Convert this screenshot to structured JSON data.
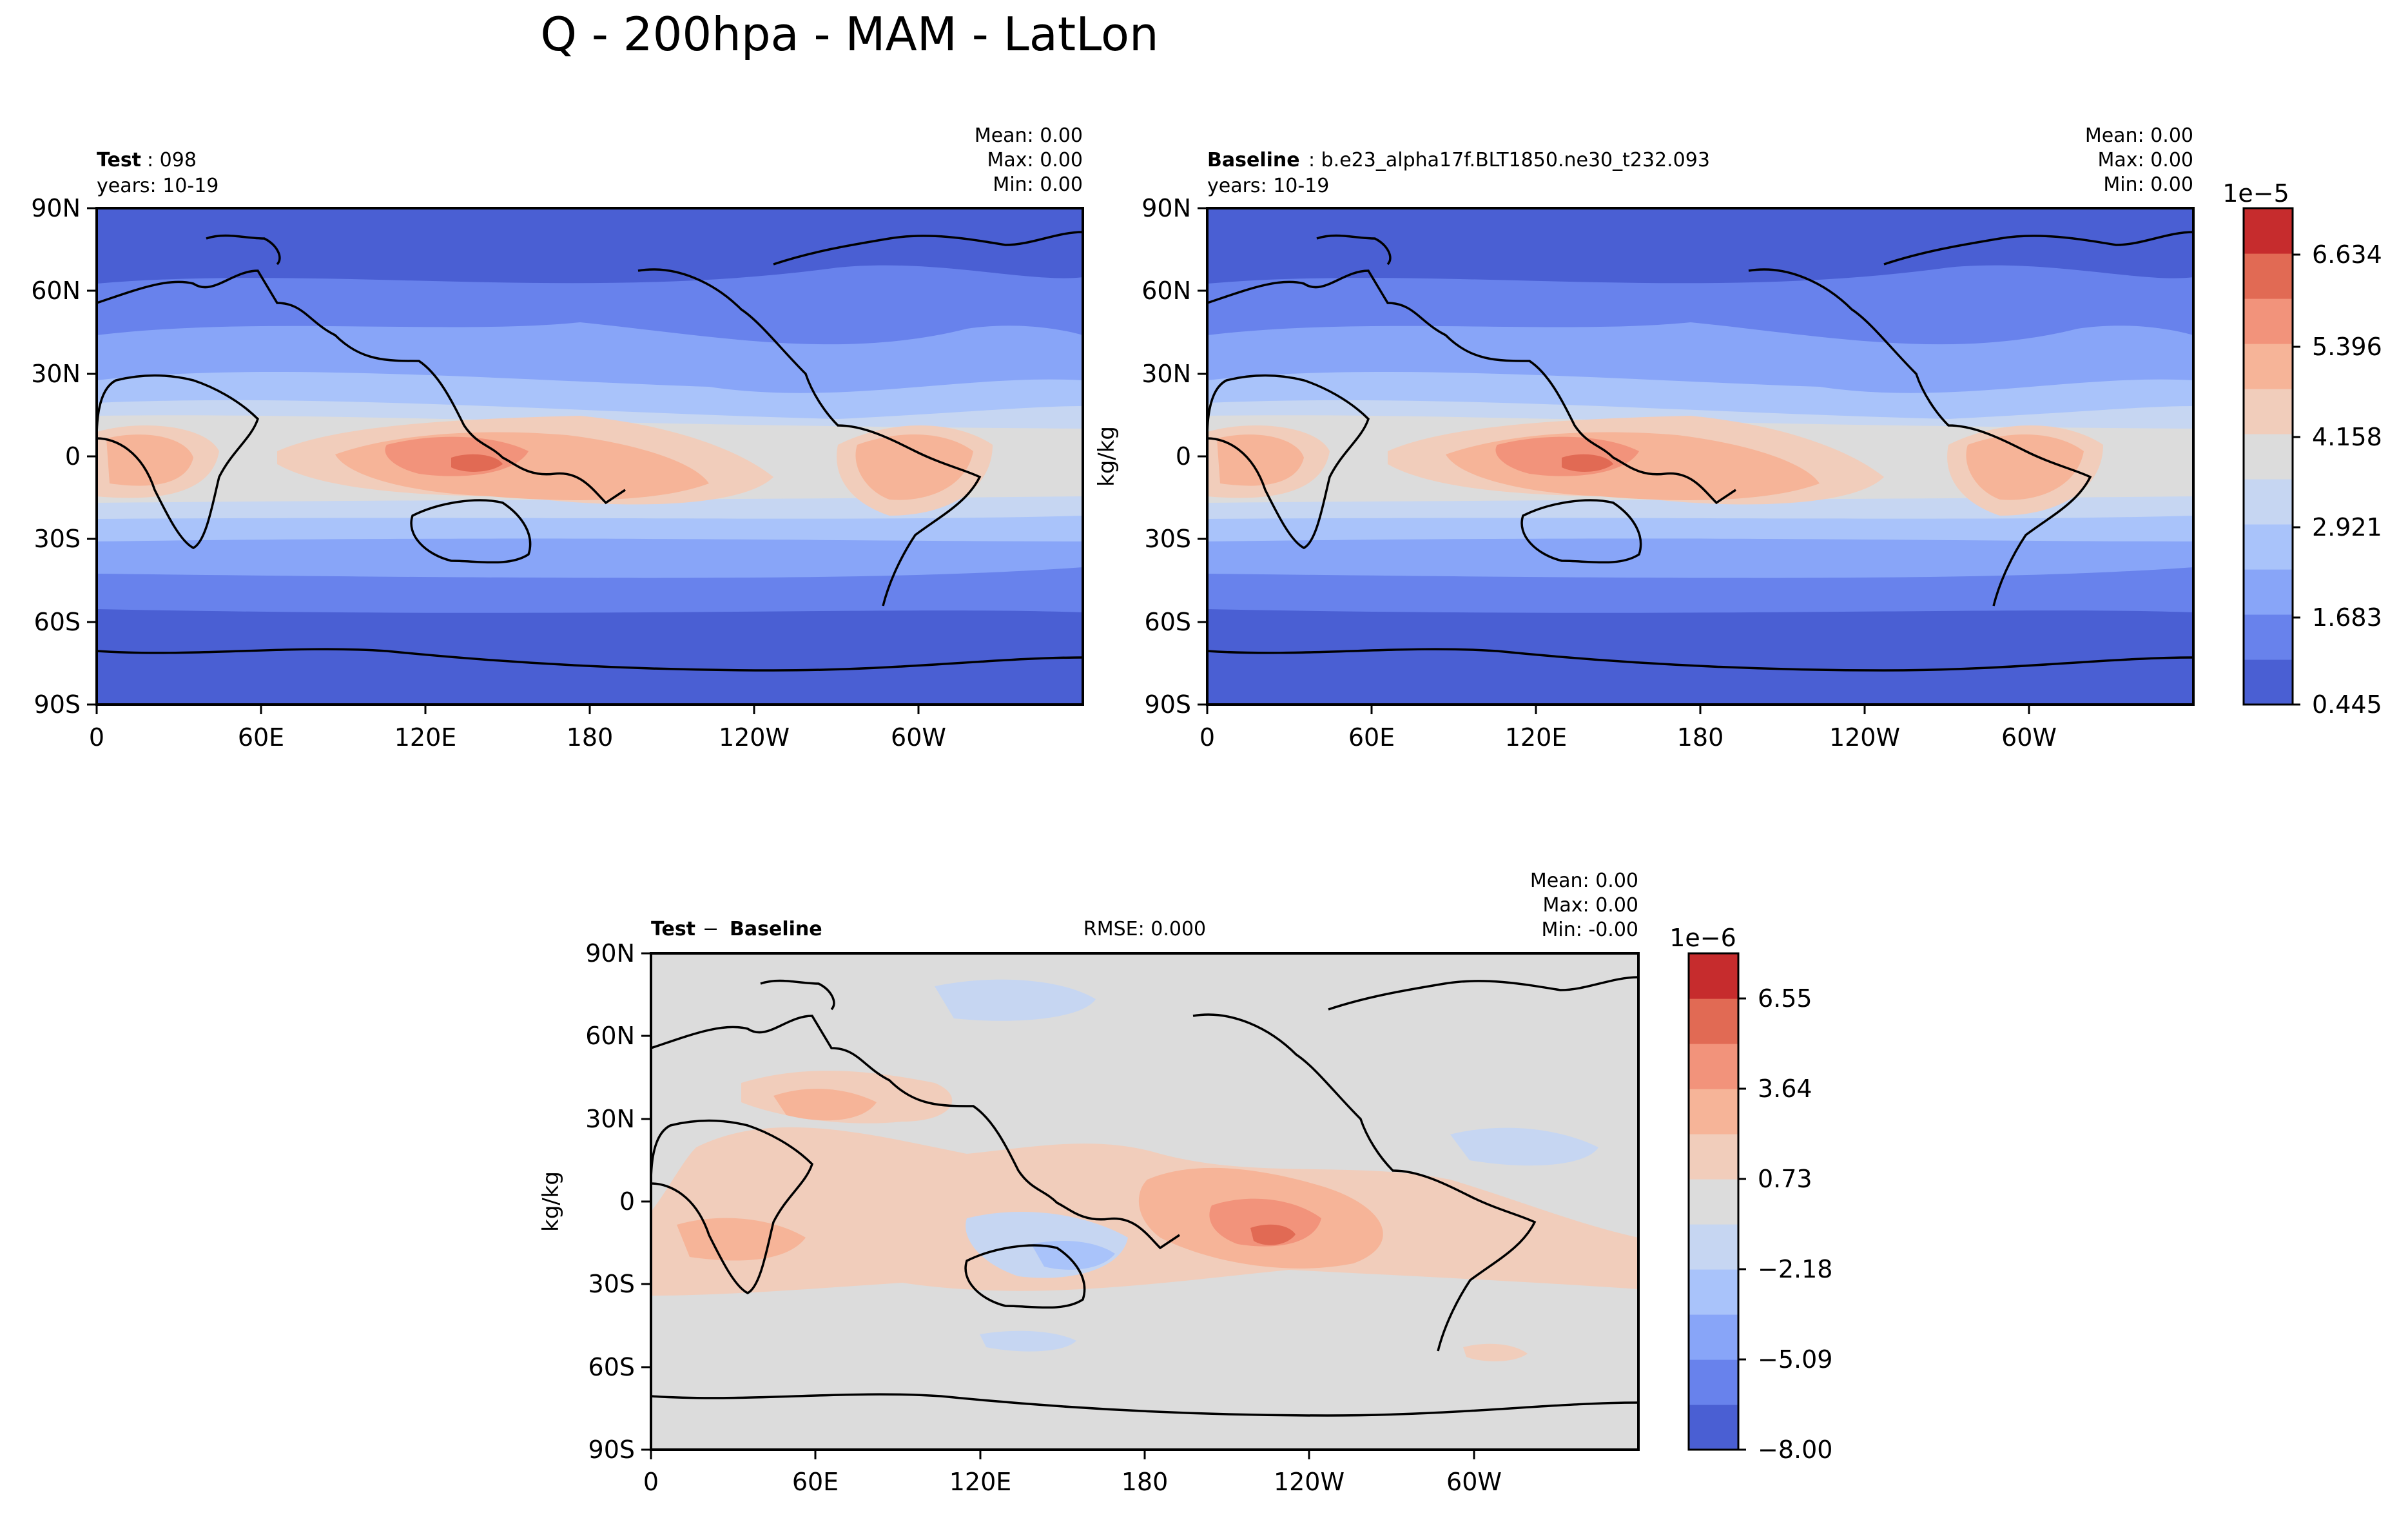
{
  "figure_title": "Q - 200hpa - MAM - LatLon",
  "colors": {
    "cool": [
      "#4a5fd3",
      "#6882ec",
      "#88a5f8",
      "#a9c3fa",
      "#c6d6f2",
      "#dcdcdc",
      "#f1cdbb",
      "#f6b498",
      "#f2937b",
      "#e16a54",
      "#c62c2d"
    ],
    "diverging": [
      "#4a5fd3",
      "#6882ec",
      "#88a5f8",
      "#a9c3fa",
      "#c6d6f2",
      "#dcdcdc",
      "#f1cdbb",
      "#f6b498",
      "#f2937b",
      "#e16a54",
      "#c62c2d"
    ],
    "coast": "#000000"
  },
  "chart_data": [
    {
      "type": "heatmap",
      "panel": "test",
      "label_bold": "Test",
      "label_rest": ": 098",
      "years": "years: 10-19",
      "stats": {
        "mean": "Mean:  0.00",
        "max": "Max:  0.00",
        "min": "Min:  0.00"
      },
      "ylabel": "",
      "xticks": [
        "0",
        "60E",
        "120E",
        "180",
        "120W",
        "60W"
      ],
      "yticks": [
        "90N",
        "60N",
        "30N",
        "0",
        "30S",
        "60S",
        "90S"
      ],
      "zlim": [
        0.445,
        7.0
      ],
      "zunits": "1e-5 kg/kg"
    },
    {
      "type": "heatmap",
      "panel": "baseline",
      "label_bold": "Baseline",
      "label_rest": ": b.e23_alpha17f.BLT1850.ne30_t232.093",
      "years": "years: 10-19",
      "stats": {
        "mean": "Mean:  0.00",
        "max": "Max:  0.00",
        "min": "Min:  0.00"
      },
      "ylabel": "kg/kg",
      "xticks": [
        "0",
        "60E",
        "120E",
        "180",
        "120W",
        "60W"
      ],
      "yticks": [
        "90N",
        "60N",
        "30N",
        "0",
        "30S",
        "60S",
        "90S"
      ],
      "colorbar": {
        "exponent": "1e−5",
        "ticks": [
          "0.445",
          "1.683",
          "2.921",
          "4.158",
          "5.396",
          "6.634"
        ]
      },
      "zlim": [
        0.445,
        7.0
      ],
      "zunits": "1e-5 kg/kg"
    },
    {
      "type": "heatmap",
      "panel": "difference",
      "label_bold": "Test",
      "label_minus": "−",
      "label_bold2": "Baseline",
      "rmse": "RMSE: 0.000",
      "stats": {
        "mean": "Mean:  0.00",
        "max": "Max:  0.00",
        "min": "Min: -0.00"
      },
      "ylabel": "kg/kg",
      "xticks": [
        "0",
        "60E",
        "120E",
        "180",
        "120W",
        "60W"
      ],
      "yticks": [
        "90N",
        "60N",
        "30N",
        "0",
        "30S",
        "60S",
        "90S"
      ],
      "colorbar": {
        "exponent": "1e−6",
        "ticks": [
          "−8.00",
          "−5.09",
          "−2.18",
          "0.73",
          "3.64",
          "6.55"
        ]
      },
      "zlim": [
        -8.0,
        8.0
      ],
      "zunits": "1e-6 kg/kg"
    }
  ]
}
